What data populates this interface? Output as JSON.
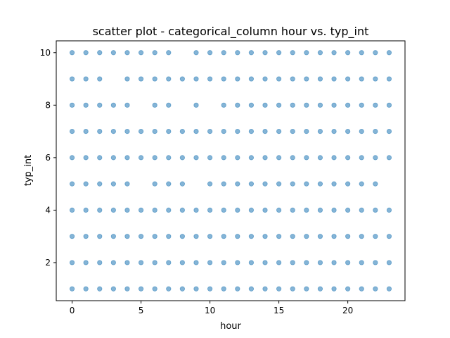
{
  "chart_data": {
    "type": "scatter",
    "title": "scatter plot - categorical_column hour vs. typ_int",
    "xlabel": "hour",
    "ylabel": "typ_int",
    "xlim": [
      -1.15,
      24.15
    ],
    "ylim": [
      0.55,
      10.45
    ],
    "xticks": [
      0,
      5,
      10,
      15,
      20
    ],
    "yticks": [
      2,
      4,
      6,
      8,
      10
    ],
    "grid": false,
    "legend": "none",
    "colors": {
      "marker": "#1f77b4",
      "axes": "#000000",
      "background": "#ffffff"
    },
    "marker_alpha": 0.55,
    "x_categories": [
      0,
      1,
      2,
      3,
      4,
      5,
      6,
      7,
      8,
      9,
      10,
      11,
      12,
      13,
      14,
      15,
      16,
      17,
      18,
      19,
      20,
      21,
      22,
      23
    ],
    "series": [
      {
        "y": 1,
        "x": [
          0,
          1,
          2,
          3,
          4,
          5,
          6,
          7,
          8,
          9,
          10,
          11,
          12,
          13,
          14,
          15,
          16,
          17,
          18,
          19,
          20,
          21,
          22,
          23
        ]
      },
      {
        "y": 2,
        "x": [
          0,
          1,
          2,
          3,
          4,
          5,
          6,
          7,
          8,
          9,
          10,
          11,
          12,
          13,
          14,
          15,
          16,
          17,
          18,
          19,
          20,
          21,
          22,
          23
        ]
      },
      {
        "y": 3,
        "x": [
          0,
          1,
          2,
          3,
          4,
          5,
          6,
          7,
          8,
          9,
          10,
          11,
          12,
          13,
          14,
          15,
          16,
          17,
          18,
          19,
          20,
          21,
          22,
          23
        ]
      },
      {
        "y": 4,
        "x": [
          0,
          1,
          2,
          3,
          4,
          5,
          6,
          7,
          8,
          9,
          10,
          11,
          12,
          13,
          14,
          15,
          16,
          17,
          18,
          19,
          20,
          21,
          22,
          23
        ]
      },
      {
        "y": 5,
        "x": [
          0,
          1,
          2,
          3,
          4,
          6,
          7,
          8,
          10,
          11,
          12,
          13,
          14,
          15,
          16,
          17,
          18,
          19,
          20,
          21,
          22
        ]
      },
      {
        "y": 6,
        "x": [
          0,
          1,
          2,
          3,
          4,
          5,
          6,
          7,
          8,
          9,
          10,
          11,
          12,
          13,
          14,
          15,
          16,
          17,
          18,
          19,
          20,
          21,
          22,
          23
        ]
      },
      {
        "y": 7,
        "x": [
          0,
          1,
          2,
          3,
          4,
          5,
          6,
          7,
          8,
          9,
          10,
          11,
          12,
          13,
          14,
          15,
          16,
          17,
          18,
          19,
          20,
          21,
          22,
          23
        ]
      },
      {
        "y": 8,
        "x": [
          0,
          1,
          2,
          3,
          4,
          6,
          7,
          9,
          11,
          12,
          13,
          14,
          15,
          16,
          17,
          18,
          19,
          20,
          21,
          22,
          23
        ]
      },
      {
        "y": 9,
        "x": [
          0,
          1,
          2,
          4,
          5,
          6,
          7,
          8,
          9,
          10,
          11,
          12,
          13,
          14,
          15,
          16,
          17,
          18,
          19,
          20,
          21,
          22,
          23
        ]
      },
      {
        "y": 10,
        "x": [
          0,
          1,
          2,
          3,
          4,
          5,
          6,
          7,
          9,
          10,
          11,
          12,
          13,
          14,
          15,
          16,
          17,
          18,
          19,
          20,
          21,
          22,
          23
        ]
      }
    ]
  }
}
